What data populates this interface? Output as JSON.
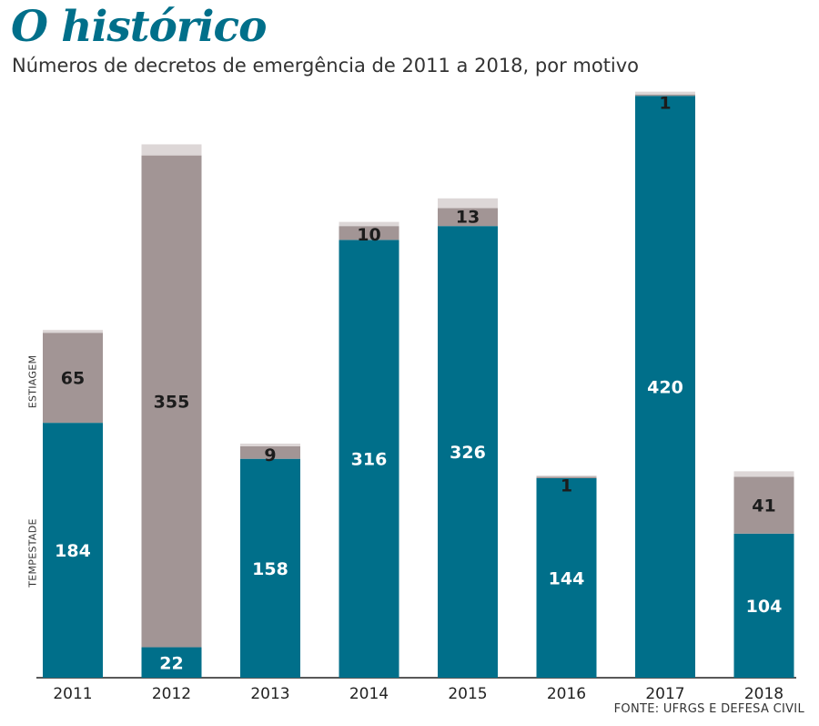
{
  "title": "O histórico",
  "subtitle": "Números de decretos de emergência de 2011 a 2018, por motivo",
  "source": "FONTE: UFRGS E DEFESA CIVIL",
  "axis_labels": {
    "estiagem": "ESTIAGEM",
    "tempestade": "TEMPESTADE"
  },
  "colors": {
    "tempestade": "#006f8a",
    "estiagem": "#a29595",
    "outros": "#ddd7d7",
    "title": "#006f8a"
  },
  "chart_data": {
    "type": "bar",
    "stacked": true,
    "categories": [
      "2011",
      "2012",
      "2013",
      "2014",
      "2015",
      "2016",
      "2017",
      "2018"
    ],
    "series": [
      {
        "key": "tempestade",
        "name": "TEMPESTADE",
        "values": [
          184,
          22,
          158,
          316,
          326,
          144,
          420,
          104
        ]
      },
      {
        "key": "estiagem",
        "name": "ESTIAGEM",
        "values": [
          65,
          355,
          9,
          10,
          13,
          1,
          1,
          41
        ]
      },
      {
        "key": "outros",
        "values": [
          2,
          8,
          2,
          3,
          7,
          1,
          2,
          4
        ]
      }
    ],
    "value_labels": {
      "tempestade": [
        "184",
        "22",
        "158",
        "316",
        "326",
        "144",
        "420",
        "104"
      ],
      "estiagem": [
        "65",
        "355",
        "9",
        "10",
        "13",
        "1",
        "1",
        "41"
      ]
    },
    "ylim": [
      0,
      430
    ],
    "grid": false
  }
}
